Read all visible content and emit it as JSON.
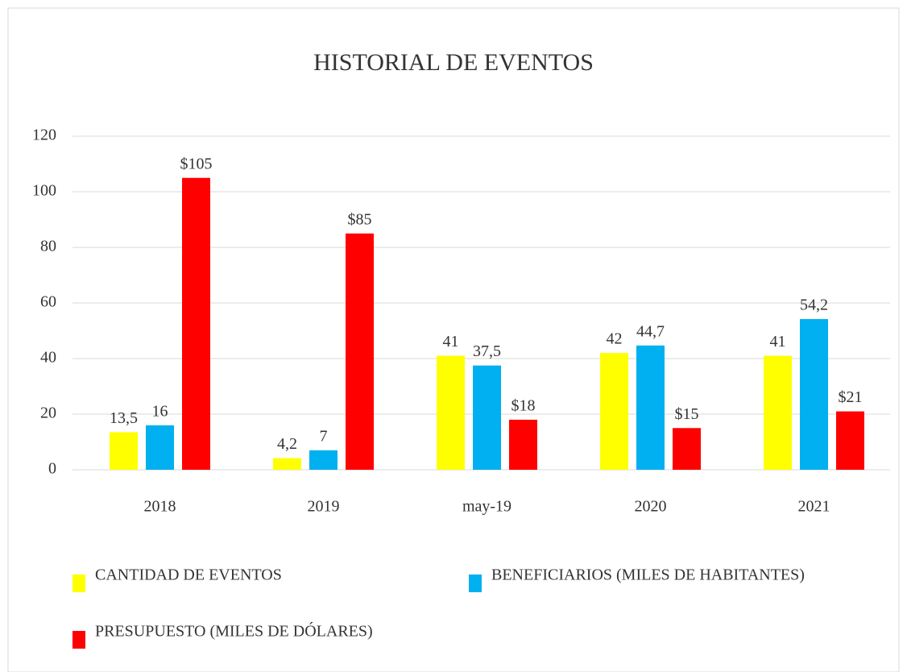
{
  "chart_data": {
    "type": "bar",
    "title": "HISTORIAL DE EVENTOS",
    "categories": [
      "2018",
      "2019",
      "may-19",
      "2020",
      "2021"
    ],
    "series": [
      {
        "name": "CANTIDAD DE EVENTOS",
        "color": "#ffff00",
        "values": [
          13.5,
          4.2,
          41,
          42,
          41
        ],
        "value_labels": [
          "13,5",
          "4,2",
          "41",
          "42",
          "41"
        ]
      },
      {
        "name": "BENEFICIARIOS (MILES DE HABITANTES)",
        "color": "#00b0f0",
        "values": [
          16,
          7,
          37.5,
          44.7,
          54.2
        ],
        "value_labels": [
          "16",
          "7",
          "37,5",
          "44,7",
          "54,2"
        ]
      },
      {
        "name": "PRESUPUESTO (MILES DE DÓLARES)",
        "color": "#ff0000",
        "values": [
          105,
          85,
          18,
          15,
          21
        ],
        "value_labels": [
          "$105",
          "$85",
          "$18",
          "$15",
          "$21"
        ]
      }
    ],
    "ylim": [
      0,
      120
    ],
    "yticks": [
      0,
      20,
      40,
      60,
      80,
      100,
      120
    ],
    "grid": true
  }
}
